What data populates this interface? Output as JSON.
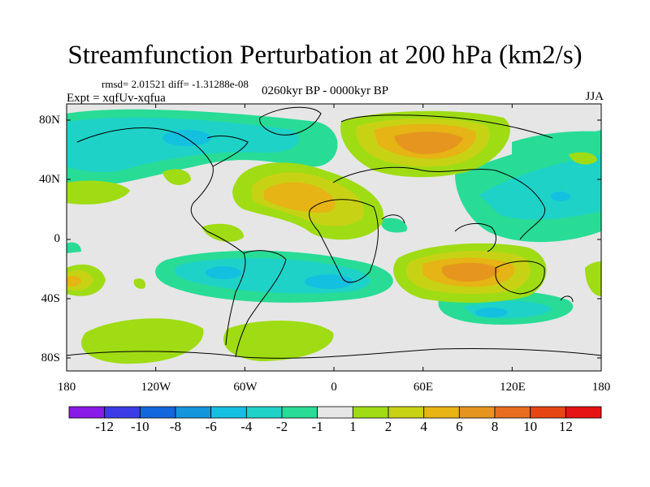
{
  "title": "Streamfunction Perturbation at 200 hPa (km2/s)",
  "stats": "rmsd= 2.01521 diff= -1.31288e-08",
  "experiment": "Expt = xqfUv-xqfua",
  "period": "0260kyr BP - 0000kyr BP",
  "season": "JJA",
  "map_data": {
    "type": "filled-contour",
    "projection": "cylindrical-equidistant",
    "variable": "streamfunction perturbation",
    "level_hPa": 200,
    "units": "km2/s",
    "lat_range": [
      -90,
      90
    ],
    "lon_range": [
      -180,
      180
    ],
    "y_tick_labels": [
      "80N",
      "40N",
      "0",
      "40S",
      "80S"
    ],
    "x_tick_labels": [
      "180",
      "120W",
      "60W",
      "0",
      "60E",
      "120E",
      "180"
    ]
  },
  "colorbar": {
    "labels": [
      "-12",
      "-10",
      "-8",
      "-6",
      "-4",
      "-2",
      "-1",
      "1",
      "2",
      "4",
      "6",
      "8",
      "10",
      "12"
    ],
    "colors": [
      "#8a1ae8",
      "#3c3ce6",
      "#1466dc",
      "#1496dc",
      "#14c0e0",
      "#1ed2c8",
      "#28dc96",
      "#e6e6e6",
      "#9fdc14",
      "#c8d214",
      "#e6b414",
      "#e6961e",
      "#e66e1e",
      "#e64614",
      "#e61414"
    ]
  },
  "colors": {
    "neutral": "#e6e6e6",
    "coast": "#000000"
  }
}
